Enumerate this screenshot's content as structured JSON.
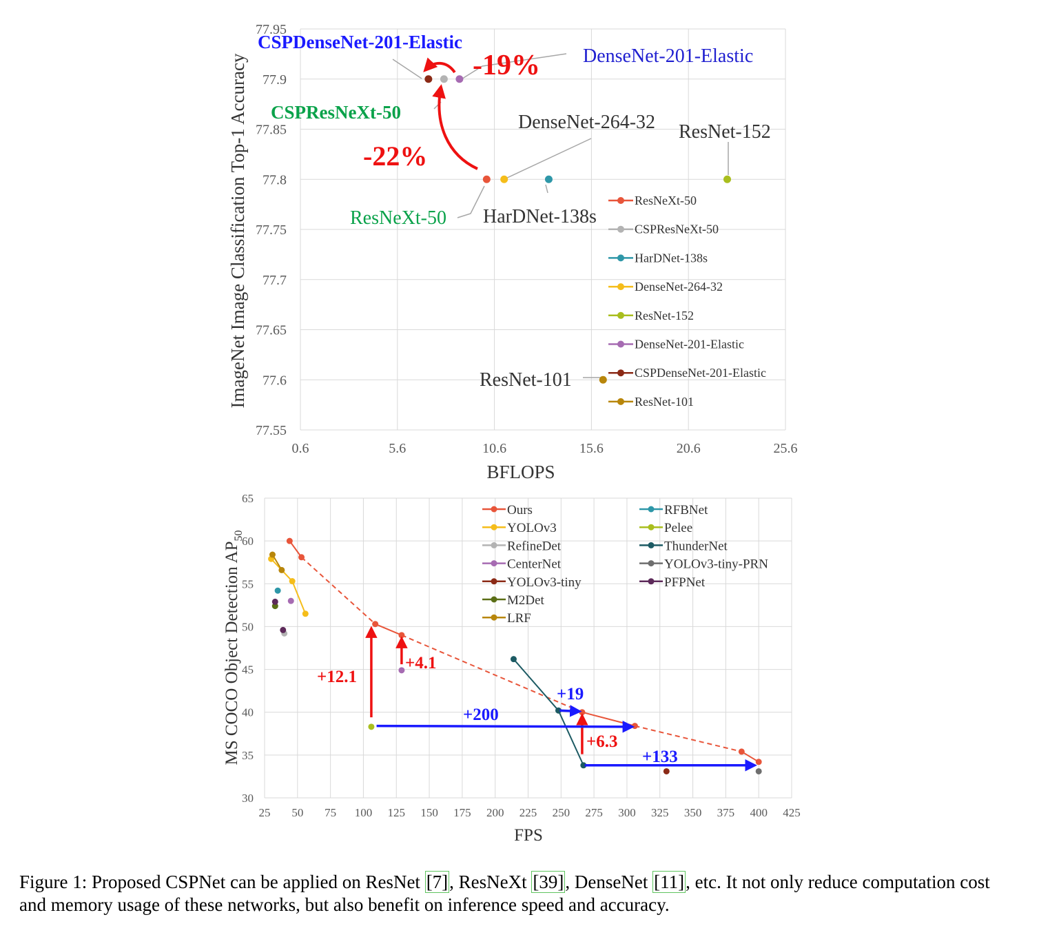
{
  "chart_data": [
    {
      "type": "scatter",
      "title": "",
      "xlabel": "BFLOPS",
      "ylabel": "ImageNet Image Classification Top-1 Accuracy",
      "xlim": [
        0.6,
        25.6
      ],
      "ylim": [
        77.55,
        77.95
      ],
      "xticks": [
        "0.6",
        "5.6",
        "10.6",
        "15.6",
        "20.6",
        "25.6"
      ],
      "yticks": [
        "77.55",
        "77.6",
        "77.65",
        "77.7",
        "77.75",
        "77.8",
        "77.85",
        "77.9",
        "77.95"
      ],
      "grid": true,
      "legend_position": "bottom-right",
      "series": [
        {
          "name": "ResNeXt-50",
          "color": "#e8553a",
          "points": [
            [
              10.2,
              77.8
            ]
          ]
        },
        {
          "name": "CSPResNeXt-50",
          "color": "#b3b3b3",
          "points": [
            [
              8.0,
              77.9
            ]
          ]
        },
        {
          "name": "HarDNet-138s",
          "color": "#2e97a8",
          "points": [
            [
              13.4,
              77.8
            ]
          ]
        },
        {
          "name": "DenseNet-264-32",
          "color": "#f5bd1a",
          "points": [
            [
              11.1,
              77.8
            ]
          ]
        },
        {
          "name": "ResNet-152",
          "color": "#a9be1e",
          "points": [
            [
              22.6,
              77.8
            ]
          ]
        },
        {
          "name": "DenseNet-201-Elastic",
          "color": "#a66bb2",
          "points": [
            [
              8.8,
              77.9
            ]
          ]
        },
        {
          "name": "CSPDenseNet-201-Elastic",
          "color": "#8b2a16",
          "points": [
            [
              7.2,
              77.9
            ]
          ]
        },
        {
          "name": "ResNet-101",
          "color": "#b8860b",
          "points": [
            [
              16.2,
              77.6
            ]
          ]
        }
      ],
      "annotations": [
        {
          "text": "CSPDenseNet-201-Elastic",
          "color": "#1a1aff"
        },
        {
          "text": "DenseNet-201-Elastic",
          "color": "#2020d0"
        },
        {
          "text": "-19%",
          "color": "#ee1111"
        },
        {
          "text": "CSPResNeXt-50",
          "color": "#0aa24a"
        },
        {
          "text": "DenseNet-264-32",
          "color": "#333333"
        },
        {
          "text": "ResNet-152",
          "color": "#333333"
        },
        {
          "text": "-22%",
          "color": "#ee1111"
        },
        {
          "text": "ResNeXt-50",
          "color": "#0aa24a"
        },
        {
          "text": "HarDNet-138s",
          "color": "#333333"
        },
        {
          "text": "ResNet-101",
          "color": "#333333"
        }
      ]
    },
    {
      "type": "line",
      "title": "",
      "xlabel": "FPS",
      "ylabel": "MS COCO Object Detection AP",
      "ylabel_sub": "50",
      "xlim": [
        25,
        425
      ],
      "ylim": [
        30,
        65
      ],
      "xticks": [
        "25",
        "50",
        "75",
        "100",
        "125",
        "150",
        "175",
        "200",
        "225",
        "250",
        "275",
        "300",
        "325",
        "350",
        "375",
        "400",
        "425"
      ],
      "yticks": [
        "30",
        "35",
        "40",
        "45",
        "50",
        "55",
        "60",
        "65"
      ],
      "grid": true,
      "legend_position": "top-right",
      "series": [
        {
          "name": "Ours",
          "color": "#e8553a",
          "segments": [
            {
              "style": "solid",
              "points": [
                [
                  44,
                  60
                ],
                [
                  53,
                  58.1
                ]
              ]
            },
            {
              "style": "dashed",
              "points": [
                [
                  53,
                  58.1
                ],
                [
                  109,
                  50.3
                ]
              ]
            },
            {
              "style": "solid",
              "points": [
                [
                  109,
                  50.3
                ],
                [
                  129,
                  49.0
                ]
              ]
            },
            {
              "style": "dashed",
              "points": [
                [
                  129,
                  49.0
                ],
                [
                  266,
                  40.0
                ]
              ]
            },
            {
              "style": "solid",
              "points": [
                [
                  266,
                  40.0
                ],
                [
                  306,
                  38.4
                ]
              ]
            },
            {
              "style": "dashed",
              "points": [
                [
                  306,
                  38.4
                ],
                [
                  387,
                  35.4
                ]
              ]
            },
            {
              "style": "solid",
              "points": [
                [
                  387,
                  35.4
                ],
                [
                  400,
                  34.2
                ]
              ]
            }
          ]
        },
        {
          "name": "YOLOv3",
          "color": "#f5bd1a",
          "segments": [
            {
              "style": "solid",
              "points": [
                [
                  30,
                  57.9
                ],
                [
                  46,
                  55.3
                ],
                [
                  56,
                  51.5
                ]
              ]
            }
          ]
        },
        {
          "name": "RefineDet",
          "color": "#b3b3b3",
          "segments": [
            {
              "style": "none",
              "points": [
                [
                  40,
                  49.2
                ]
              ]
            }
          ]
        },
        {
          "name": "CenterNet",
          "color": "#a66bb2",
          "segments": [
            {
              "style": "none",
              "points": [
                [
                  45,
                  53.0
                ],
                [
                  129,
                  44.9
                ]
              ]
            }
          ]
        },
        {
          "name": "YOLOv3-tiny",
          "color": "#8b2a16",
          "segments": [
            {
              "style": "none",
              "points": [
                [
                  330,
                  33.1
                ]
              ]
            }
          ]
        },
        {
          "name": "M2Det",
          "color": "#5b6e16",
          "segments": [
            {
              "style": "none",
              "points": [
                [
                  33,
                  52.4
                ]
              ]
            }
          ]
        },
        {
          "name": "LRF",
          "color": "#b8860b",
          "segments": [
            {
              "style": "solid",
              "points": [
                [
                  31,
                  58.4
                ],
                [
                  38,
                  56.6
                ]
              ]
            }
          ]
        },
        {
          "name": "RFBNet",
          "color": "#2e97a8",
          "segments": [
            {
              "style": "none",
              "points": [
                [
                  35,
                  54.2
                ]
              ]
            }
          ]
        },
        {
          "name": "Pelee",
          "color": "#a9be1e",
          "segments": [
            {
              "style": "none",
              "points": [
                [
                  106,
                  38.3
                ]
              ]
            }
          ]
        },
        {
          "name": "ThunderNet",
          "color": "#1c5a63",
          "segments": [
            {
              "style": "solid",
              "points": [
                [
                  214,
                  46.2
                ],
                [
                  248,
                  40.2
                ],
                [
                  267,
                  33.8
                ]
              ]
            }
          ]
        },
        {
          "name": "YOLOv3-tiny-PRN",
          "color": "#6e6e6e",
          "segments": [
            {
              "style": "none",
              "points": [
                [
                  400,
                  33.1
                ]
              ]
            }
          ]
        },
        {
          "name": "PFPNet",
          "color": "#5d2a5a",
          "segments": [
            {
              "style": "none",
              "points": [
                [
                  33,
                  52.9
                ],
                [
                  39,
                  49.6
                ]
              ]
            }
          ]
        }
      ],
      "annotations": [
        {
          "text": "+12.1",
          "color": "#ee1111"
        },
        {
          "text": "+4.1",
          "color": "#ee1111"
        },
        {
          "text": "+200",
          "color": "#1a1aff"
        },
        {
          "text": "+19",
          "color": "#1a1aff"
        },
        {
          "text": "+6.3",
          "color": "#ee1111"
        },
        {
          "text": "+133",
          "color": "#1a1aff"
        }
      ]
    }
  ],
  "caption": {
    "prefix": "Figure 1: Proposed CSPNet can be applied on ResNet ",
    "ref1": "[7]",
    "mid1": ", ResNeXt ",
    "ref2": "[39]",
    "mid2": ", DenseNet ",
    "ref3": "[11]",
    "suffix": ", etc.  It not only reduce computation cost and memory usage of these networks, but also benefit on inference speed and accuracy."
  }
}
